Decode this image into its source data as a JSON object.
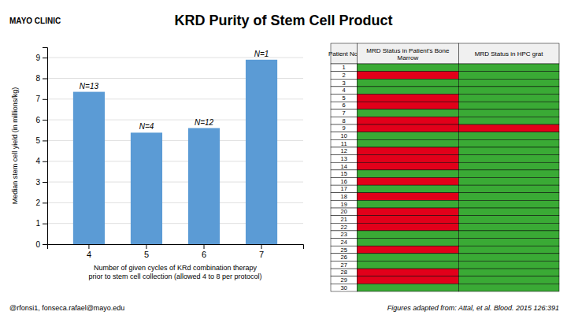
{
  "chart_data": [
    {
      "type": "bar",
      "title": "KRD Purity of Stem Cell Product",
      "categories": [
        "4",
        "5",
        "6",
        "7"
      ],
      "values": [
        7.35,
        5.38,
        5.6,
        8.9
      ],
      "annotations": [
        "N=13",
        "N=4",
        "N=12",
        "N=1"
      ],
      "color": "#5b9bd5",
      "xlabel": "Number of given cycles of KRd combination therapy\nprior to stem cell collection (allowed 4 to 8 per protocol)",
      "ylabel": "Median stem cell yield (in millions/kg)",
      "ylim": [
        0,
        9.5
      ],
      "yticks": [
        0,
        1,
        2,
        3,
        4,
        5,
        6,
        7,
        8,
        9
      ],
      "grid": true
    },
    {
      "type": "table",
      "xlabel": "Patient No.",
      "categories": [
        1,
        2,
        3,
        4,
        5,
        6,
        7,
        8,
        9,
        10,
        11,
        12,
        13,
        14,
        15,
        16,
        17,
        18,
        19,
        20,
        21,
        22,
        23,
        24,
        25,
        26,
        27,
        28,
        29,
        30
      ],
      "series": [
        {
          "name": "MRD Status in Patient's Bone\nMarrow",
          "colors": [
            "#3aaa35",
            "#e2001a",
            "#3aaa35",
            "#3aaa35",
            "#e2001a",
            "#e2001a",
            "#3aaa35",
            "#e2001a",
            "#e2001a",
            "#3aaa35",
            "#3aaa35",
            "#e2001a",
            "#e2001a",
            "#e2001a",
            "#3aaa35",
            "#e2001a",
            "#3aaa35",
            "#e2001a",
            "#3aaa35",
            "#e2001a",
            "#e2001a",
            "#e2001a",
            "#3aaa35",
            "#3aaa35",
            "#e2001a",
            "#3aaa35",
            "#3aaa35",
            "#e2001a",
            "#e2001a",
            "#3aaa35"
          ]
        },
        {
          "name": "MRD Status in HPC grat",
          "colors": [
            "#3aaa35",
            "#3aaa35",
            "#3aaa35",
            "#3aaa35",
            "#3aaa35",
            "#3aaa35",
            "#3aaa35",
            "#3aaa35",
            "#e2001a",
            "#3aaa35",
            "#3aaa35",
            "#3aaa35",
            "#3aaa35",
            "#3aaa35",
            "#3aaa35",
            "#3aaa35",
            "#3aaa35",
            "#3aaa35",
            "#3aaa35",
            "#3aaa35",
            "#3aaa35",
            "#3aaa35",
            "#3aaa35",
            "#3aaa35",
            "#3aaa35",
            "#3aaa35",
            "#3aaa35",
            "#3aaa35",
            "#3aaa35",
            "#3aaa35"
          ]
        }
      ]
    }
  ],
  "annotations": [
    "MAYO CLINIC",
    "@rfonsi1, fonseca.rafael@mayo.edu",
    "Figures adapted from: Attal, et al. Blood. 2015 126:391"
  ]
}
